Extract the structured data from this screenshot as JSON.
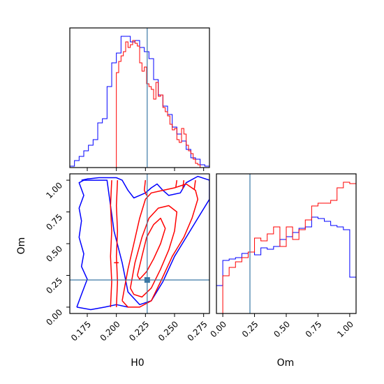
{
  "chart_data": [
    {
      "type": "histogram",
      "panel": "H0-marginal",
      "x_range": [
        0.16,
        0.28
      ],
      "truth_value": 0.2265,
      "series": [
        {
          "color": "#0000ff",
          "bin_edges": [
            0.16,
            0.164,
            0.168,
            0.172,
            0.176,
            0.18,
            0.184,
            0.188,
            0.192,
            0.196,
            0.2,
            0.204,
            0.208,
            0.212,
            0.216,
            0.22,
            0.224,
            0.228,
            0.232,
            0.236,
            0.24,
            0.244,
            0.248,
            0.252,
            0.256,
            0.26,
            0.264,
            0.268,
            0.272,
            0.276,
            0.28
          ],
          "heights": [
            0.01,
            0.05,
            0.08,
            0.12,
            0.16,
            0.2,
            0.32,
            0.35,
            0.58,
            0.75,
            0.82,
            0.94,
            0.94,
            0.9,
            0.91,
            0.86,
            0.83,
            0.78,
            0.63,
            0.52,
            0.44,
            0.38,
            0.29,
            0.24,
            0.19,
            0.13,
            0.07,
            0.06,
            0.02,
            0.01
          ]
        },
        {
          "color": "#ff0000",
          "bin_edges": [
            0.2,
            0.202,
            0.204,
            0.206,
            0.208,
            0.21,
            0.212,
            0.214,
            0.216,
            0.218,
            0.22,
            0.222,
            0.224,
            0.226,
            0.228,
            0.23,
            0.232,
            0.234,
            0.236,
            0.238,
            0.24,
            0.242,
            0.244,
            0.246,
            0.248,
            0.25,
            0.252,
            0.254,
            0.256,
            0.258,
            0.26,
            0.262,
            0.264,
            0.266,
            0.268,
            0.27,
            0.272
          ],
          "heights": [
            0.68,
            0.76,
            0.8,
            0.83,
            0.9,
            0.86,
            0.88,
            0.91,
            0.89,
            0.87,
            0.75,
            0.69,
            0.72,
            0.6,
            0.58,
            0.56,
            0.49,
            0.61,
            0.51,
            0.52,
            0.43,
            0.4,
            0.37,
            0.31,
            0.27,
            0.28,
            0.2,
            0.18,
            0.28,
            0.24,
            0.16,
            0.12,
            0.1,
            0.06,
            0.03,
            0.02
          ]
        }
      ]
    },
    {
      "type": "contour",
      "panel": "H0-vs-Om",
      "x_range": [
        0.16,
        0.28
      ],
      "y_range": [
        -0.05,
        1.05
      ],
      "x_ticks": [
        "0.175",
        "0.200",
        "0.225",
        "0.250",
        "0.275"
      ],
      "y_ticks": [
        "0.00",
        "0.25",
        "0.50",
        "0.75",
        "1.00"
      ],
      "xlabel": "H0",
      "ylabel": "Om",
      "truth_point": [
        0.2265,
        0.214
      ],
      "series": [
        {
          "color": "#0000ff",
          "contours": [
            [
              [
                0.17,
                1.0
              ],
              [
                0.192,
                1.0
              ],
              [
                0.195,
                0.8
              ],
              [
                0.198,
                0.6
              ],
              [
                0.205,
                0.35
              ],
              [
                0.21,
                0.12
              ],
              [
                0.22,
                0.02
              ],
              [
                0.23,
                0.05
              ],
              [
                0.24,
                0.2
              ],
              [
                0.25,
                0.4
              ],
              [
                0.26,
                0.55
              ],
              [
                0.27,
                0.7
              ],
              [
                0.28,
                0.85
              ],
              [
                0.28,
                1.0
              ],
              [
                0.27,
                1.03
              ],
              [
                0.26,
                0.98
              ],
              [
                0.255,
                0.9
              ],
              [
                0.245,
                0.88
              ],
              [
                0.24,
                0.92
              ],
              [
                0.235,
                0.97
              ],
              [
                0.23,
                0.94
              ],
              [
                0.225,
                0.9
              ],
              [
                0.22,
                0.88
              ],
              [
                0.215,
                0.86
              ],
              [
                0.21,
                0.92
              ],
              [
                0.205,
                1.0
              ],
              [
                0.2,
                1.02
              ],
              [
                0.192,
                1.02
              ],
              [
                0.185,
                1.02
              ],
              [
                0.175,
                1.01
              ],
              [
                0.17,
                1.0
              ]
            ],
            [
              [
                0.166,
                0.0
              ],
              [
                0.17,
                0.1
              ],
              [
                0.175,
                0.22
              ],
              [
                0.17,
                0.32
              ],
              [
                0.172,
                0.42
              ],
              [
                0.168,
                0.55
              ],
              [
                0.17,
                0.68
              ],
              [
                0.168,
                0.78
              ],
              [
                0.172,
                0.88
              ],
              [
                0.168,
                0.98
              ],
              [
                0.172,
                1.0
              ]
            ],
            [
              [
                0.166,
                0.0
              ],
              [
                0.178,
                -0.02
              ],
              [
                0.19,
                0.0
              ],
              [
                0.2,
                0.02
              ],
              [
                0.21,
                0.0
              ]
            ]
          ]
        },
        {
          "color": "#ff0000",
          "contours": [
            [
              [
                0.195,
                0.0
              ],
              [
                0.196,
                0.2
              ],
              [
                0.195,
                0.4
              ],
              [
                0.196,
                0.6
              ],
              [
                0.195,
                0.8
              ],
              [
                0.196,
                1.0
              ]
            ],
            [
              [
                0.2,
                0.0
              ],
              [
                0.201,
                0.2
              ],
              [
                0.2,
                0.4
              ],
              [
                0.201,
                0.6
              ],
              [
                0.2,
                0.8
              ],
              [
                0.201,
                1.0
              ]
            ],
            [
              [
                0.205,
                0.05
              ],
              [
                0.21,
                0.3
              ],
              [
                0.215,
                0.5
              ],
              [
                0.22,
                0.7
              ],
              [
                0.225,
                0.85
              ],
              [
                0.23,
                0.9
              ],
              [
                0.24,
                0.92
              ],
              [
                0.25,
                0.94
              ],
              [
                0.26,
                0.97
              ],
              [
                0.268,
                0.92
              ],
              [
                0.27,
                0.85
              ],
              [
                0.265,
                0.7
              ],
              [
                0.258,
                0.55
              ],
              [
                0.248,
                0.4
              ],
              [
                0.238,
                0.2
              ],
              [
                0.23,
                0.05
              ],
              [
                0.22,
                0.0
              ],
              [
                0.21,
                0.0
              ],
              [
                0.205,
                0.05
              ]
            ],
            [
              [
                0.212,
                0.15
              ],
              [
                0.216,
                0.35
              ],
              [
                0.222,
                0.55
              ],
              [
                0.228,
                0.7
              ],
              [
                0.236,
                0.78
              ],
              [
                0.245,
                0.8
              ],
              [
                0.252,
                0.75
              ],
              [
                0.25,
                0.6
              ],
              [
                0.245,
                0.45
              ],
              [
                0.238,
                0.3
              ],
              [
                0.23,
                0.15
              ],
              [
                0.222,
                0.08
              ],
              [
                0.215,
                0.1
              ],
              [
                0.212,
                0.15
              ]
            ],
            [
              [
                0.218,
                0.25
              ],
              [
                0.222,
                0.4
              ],
              [
                0.226,
                0.55
              ],
              [
                0.232,
                0.65
              ],
              [
                0.238,
                0.7
              ],
              [
                0.242,
                0.62
              ],
              [
                0.238,
                0.5
              ],
              [
                0.232,
                0.38
              ],
              [
                0.226,
                0.28
              ],
              [
                0.22,
                0.22
              ],
              [
                0.218,
                0.25
              ]
            ],
            [
              [
                0.198,
                0.35
              ],
              [
                0.202,
                0.35
              ]
            ],
            [
              [
                0.225,
                1.0
              ],
              [
                0.224,
                0.92
              ],
              [
                0.226,
                0.88
              ]
            ],
            [
              [
                0.252,
                1.0
              ],
              [
                0.251,
                0.94
              ]
            ],
            [
              [
                0.258,
                1.0
              ],
              [
                0.257,
                0.93
              ]
            ],
            [
              [
                0.268,
                1.0
              ],
              [
                0.267,
                0.93
              ]
            ]
          ]
        }
      ]
    },
    {
      "type": "histogram",
      "panel": "Om-marginal",
      "x_range": [
        -0.05,
        1.05
      ],
      "x_ticks": [
        "0.00",
        "0.25",
        "0.50",
        "0.75",
        "1.00"
      ],
      "xlabel": "Om",
      "truth_value": 0.214,
      "series": [
        {
          "color": "#0000ff",
          "bin_edges": [
            -0.05,
            0.0,
            0.05,
            0.1,
            0.15,
            0.2,
            0.25,
            0.3,
            0.35,
            0.4,
            0.45,
            0.5,
            0.55,
            0.6,
            0.65,
            0.7,
            0.75,
            0.8,
            0.85,
            0.9,
            0.95,
            1.0,
            1.05
          ],
          "heights": [
            0.2,
            0.38,
            0.39,
            0.4,
            0.43,
            0.44,
            0.42,
            0.47,
            0.46,
            0.48,
            0.53,
            0.55,
            0.58,
            0.61,
            0.62,
            0.69,
            0.68,
            0.66,
            0.63,
            0.62,
            0.6,
            0.26
          ]
        },
        {
          "color": "#ff0000",
          "bin_edges": [
            -0.05,
            0.0,
            0.05,
            0.1,
            0.15,
            0.2,
            0.25,
            0.3,
            0.35,
            0.4,
            0.45,
            0.5,
            0.55,
            0.6,
            0.65,
            0.7,
            0.75,
            0.8,
            0.85,
            0.9,
            0.95,
            1.0,
            1.05
          ],
          "heights": [
            0.0,
            0.27,
            0.33,
            0.37,
            0.4,
            0.44,
            0.54,
            0.52,
            0.57,
            0.62,
            0.48,
            0.62,
            0.53,
            0.6,
            0.67,
            0.77,
            0.79,
            0.79,
            0.81,
            0.9,
            0.94,
            0.93
          ]
        }
      ]
    }
  ]
}
